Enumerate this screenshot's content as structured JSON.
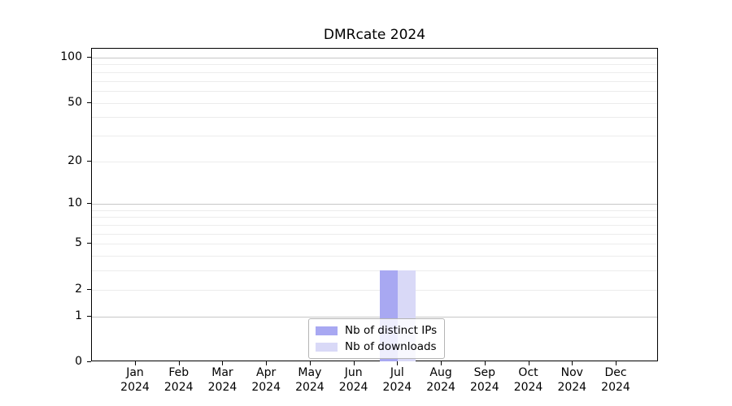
{
  "chart_data": {
    "type": "bar",
    "title": "DMRcate 2024",
    "x_months": [
      "Jan",
      "Feb",
      "Mar",
      "Apr",
      "May",
      "Jun",
      "Jul",
      "Aug",
      "Sep",
      "Oct",
      "Nov",
      "Dec"
    ],
    "x_year": "2024",
    "series": [
      {
        "name": "Nb of distinct IPs",
        "color": "#a8a8f2",
        "values": [
          0,
          0,
          0,
          0,
          0,
          0,
          3,
          0,
          0,
          0,
          0,
          0
        ]
      },
      {
        "name": "Nb of downloads",
        "color": "#d9d9f7",
        "values": [
          0,
          0,
          0,
          0,
          0,
          0,
          3,
          0,
          0,
          0,
          0,
          0
        ]
      }
    ],
    "y_scale": "log10(1+v)",
    "ylim": [
      0,
      100
    ],
    "y_ticks": [
      0,
      1,
      2,
      5,
      10,
      20,
      50,
      100
    ],
    "y_major_gridlines": [
      1,
      10,
      100
    ],
    "y_minor_gridlines": [
      2,
      3,
      4,
      5,
      6,
      7,
      8,
      9,
      20,
      30,
      40,
      50,
      60,
      70,
      80,
      90
    ],
    "grid": "horizontal",
    "legend_position": "inside-bottom-center",
    "colors": {
      "major_grid": "#c6c6c6",
      "minor_grid": "#ececec",
      "axis": "#000000",
      "background": "#ffffff"
    }
  }
}
